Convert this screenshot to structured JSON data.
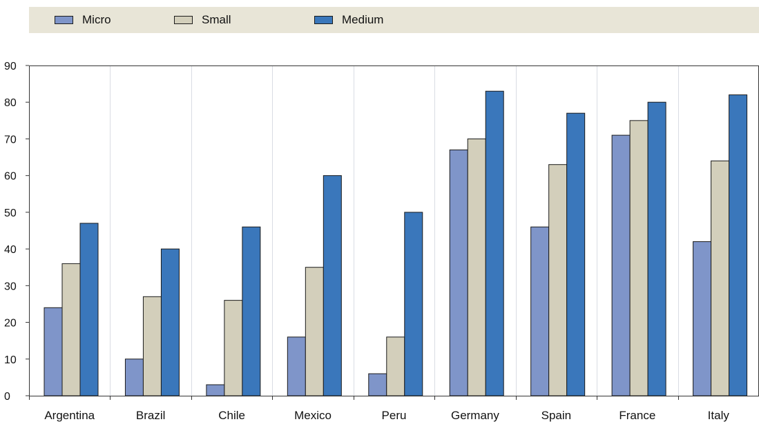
{
  "legend": {
    "items": [
      {
        "label": "Micro",
        "color": "#7f95c9"
      },
      {
        "label": "Small",
        "color": "#d3cfbb"
      },
      {
        "label": "Medium",
        "color": "#3a77bb"
      }
    ]
  },
  "chart_data": {
    "type": "bar",
    "title": "",
    "xlabel": "",
    "ylabel": "",
    "categories": [
      "Argentina",
      "Brazil",
      "Chile",
      "Mexico",
      "Peru",
      "Germany",
      "Spain",
      "France",
      "Italy"
    ],
    "series": [
      {
        "name": "Micro",
        "color": "#7f95c9",
        "values": [
          24,
          10,
          3,
          16,
          6,
          67,
          46,
          71,
          42
        ]
      },
      {
        "name": "Small",
        "color": "#d3cfbb",
        "values": [
          36,
          27,
          26,
          35,
          16,
          70,
          63,
          75,
          64
        ]
      },
      {
        "name": "Medium",
        "color": "#3a77bb",
        "values": [
          47,
          40,
          46,
          60,
          50,
          83,
          77,
          80,
          82
        ]
      }
    ],
    "ylim": [
      0,
      90
    ],
    "yticks": [
      0,
      10,
      20,
      30,
      40,
      50,
      60,
      70,
      80,
      90
    ],
    "grid": "vertical separators between categories",
    "legend_position": "top"
  }
}
